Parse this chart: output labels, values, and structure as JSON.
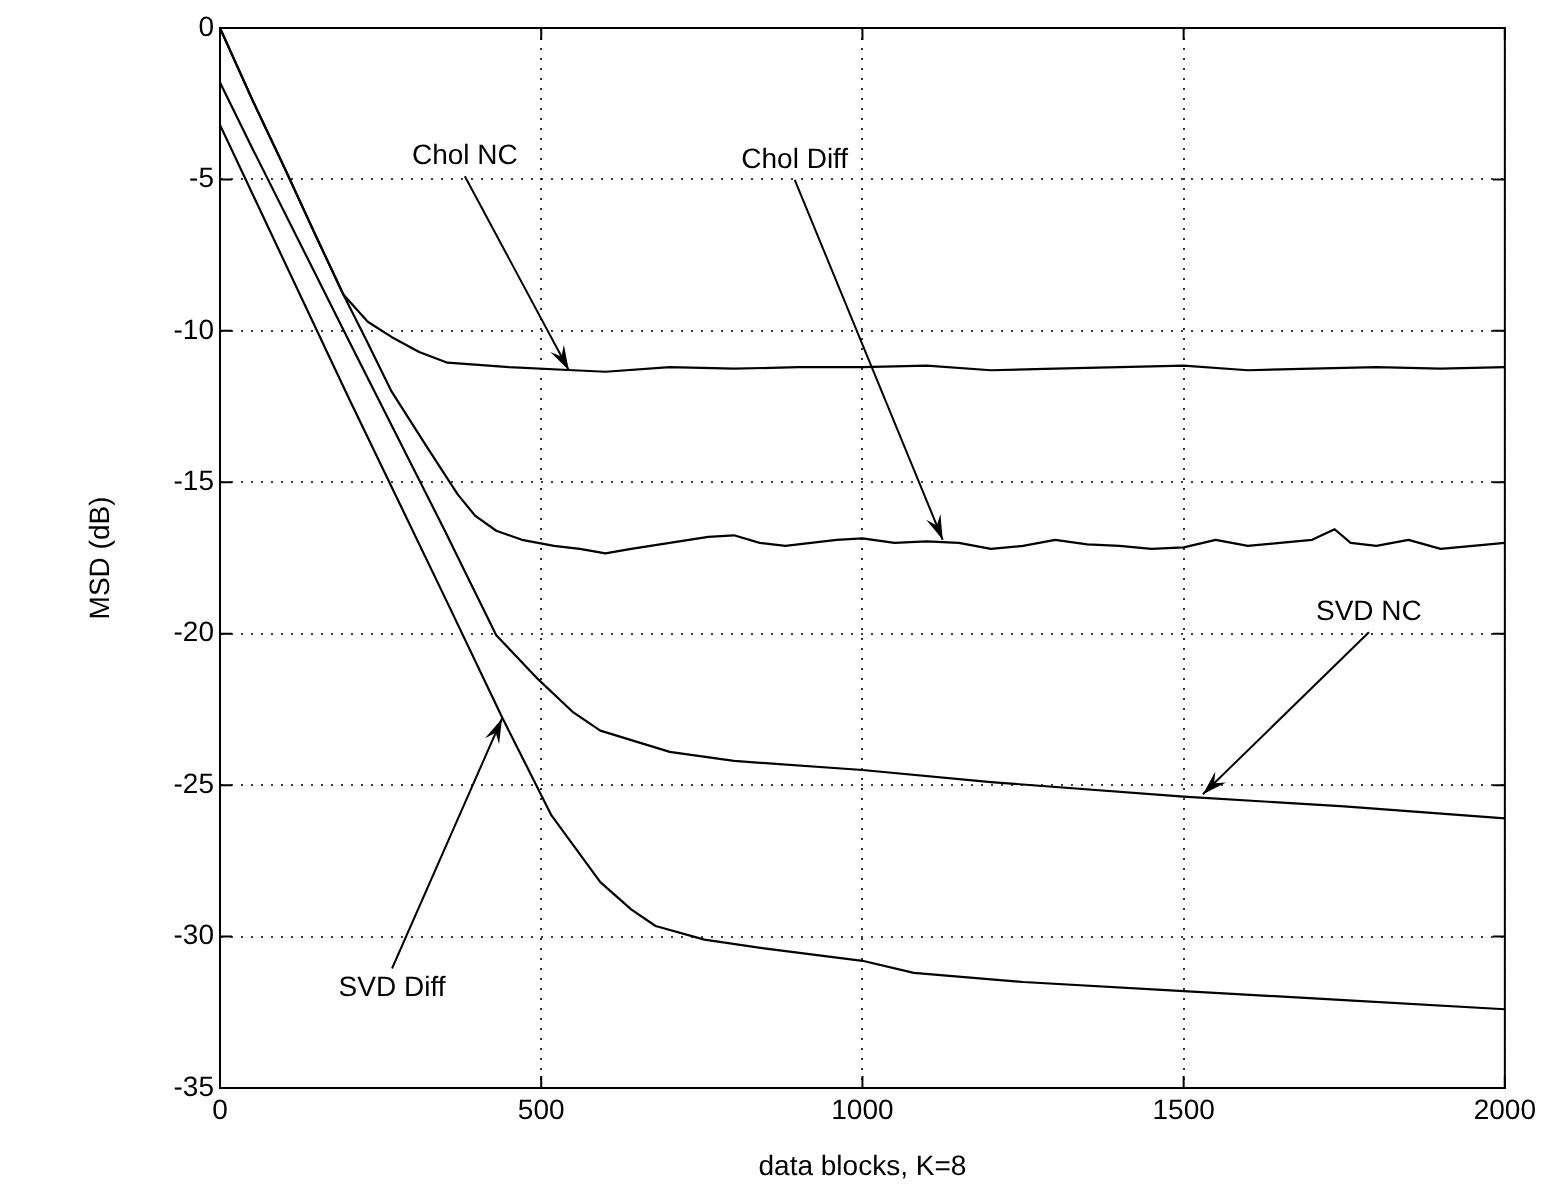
{
  "chart_data": {
    "type": "line",
    "xlabel": "data blocks, K=8",
    "ylabel": "MSD (dB)",
    "xlim": [
      0,
      2000
    ],
    "xticks": [
      0,
      500,
      1000,
      1500,
      2000
    ],
    "ylim": [
      -35,
      0
    ],
    "yticks": [
      -35,
      -30,
      -25,
      -20,
      -15,
      -10,
      -5,
      0
    ],
    "grid": true,
    "legend": false,
    "marker": "none",
    "line_style": "solid",
    "series": [
      {
        "color": "#000000",
        "x": [
          0,
          51,
          100,
          150,
          192,
          230,
          267,
          310,
          354,
          450,
          550,
          600,
          700,
          800,
          900,
          1000,
          1100,
          1200,
          1300,
          1400,
          1500,
          1600,
          1700,
          1800,
          1900,
          2000
        ],
        "values": [
          0,
          -2.4,
          -4.6,
          -6.9,
          -8.8,
          -9.7,
          -10.2,
          -10.7,
          -11.05,
          -11.2,
          -11.3,
          -11.35,
          -11.2,
          -11.25,
          -11.2,
          -11.2,
          -11.15,
          -11.3,
          -11.25,
          -11.2,
          -11.15,
          -11.3,
          -11.25,
          -11.2,
          -11.25,
          -11.2
        ]
      },
      {
        "color": "#000000",
        "x": [
          0,
          51,
          100,
          150,
          192,
          230,
          267,
          321,
          370,
          397,
          430,
          470,
          520,
          560,
          600,
          640,
          700,
          760,
          800,
          840,
          880,
          920,
          960,
          1000,
          1050,
          1100,
          1150,
          1200,
          1250,
          1300,
          1350,
          1400,
          1450,
          1500,
          1550,
          1600,
          1650,
          1700,
          1735,
          1760,
          1800,
          1850,
          1900,
          1950,
          2000
        ],
        "values": [
          0,
          -2.4,
          -4.6,
          -6.9,
          -8.8,
          -10.4,
          -12.0,
          -13.8,
          -15.4,
          -16.1,
          -16.6,
          -16.9,
          -17.1,
          -17.2,
          -17.35,
          -17.2,
          -17.0,
          -16.8,
          -16.75,
          -17.0,
          -17.1,
          -17.0,
          -16.9,
          -16.85,
          -17.0,
          -16.95,
          -17.0,
          -17.2,
          -17.1,
          -16.9,
          -17.05,
          -17.1,
          -17.2,
          -17.15,
          -16.9,
          -17.1,
          -17.0,
          -16.9,
          -16.55,
          -17.0,
          -17.1,
          -16.9,
          -17.2,
          -17.1,
          -17.0
        ]
      },
      {
        "color": "#000000",
        "x": [
          0,
          51,
          200,
          350,
          430,
          495,
          550,
          592,
          700,
          800,
          1000,
          1200,
          1500,
          1750,
          2000
        ],
        "values": [
          -1.8,
          -4.0,
          -10.3,
          -16.6,
          -20.05,
          -21.5,
          -22.6,
          -23.2,
          -23.9,
          -24.2,
          -24.5,
          -24.9,
          -25.38,
          -25.7,
          -26.1
        ]
      },
      {
        "color": "#000000",
        "x": [
          0,
          51,
          200,
          350,
          440,
          516,
          592,
          640,
          678,
          754,
          850,
          1000,
          1080,
          1250,
          1500,
          1750,
          2000
        ],
        "values": [
          -3.2,
          -5.5,
          -12.2,
          -18.8,
          -22.8,
          -26.0,
          -28.2,
          -29.1,
          -29.65,
          -30.1,
          -30.4,
          -30.8,
          -31.2,
          -31.5,
          -31.8,
          -32.1,
          -32.4
        ]
      }
    ],
    "annotations": [
      {
        "text": "Chol NC",
        "x": 543,
        "y": -11.3
      },
      {
        "text": "Chol Diff",
        "x": 1125,
        "y": -16.9
      },
      {
        "text": "SVD NC",
        "x": 1530,
        "y": -25.3
      },
      {
        "text": "SVD Diff",
        "x": 439,
        "y": -22.8
      }
    ]
  }
}
